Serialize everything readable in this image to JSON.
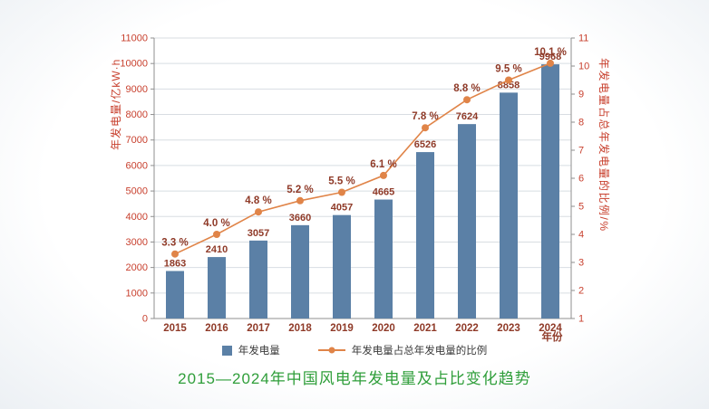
{
  "chart_data": {
    "type": "bar+line",
    "title": "2015—2024年中国风电年发电量及占比变化趋势",
    "categories": [
      "2015",
      "2016",
      "2017",
      "2018",
      "2019",
      "2020",
      "2021",
      "2022",
      "2023",
      "2024"
    ],
    "series": [
      {
        "name": "年发电量",
        "type": "bar",
        "values": [
          1863,
          2410,
          3057,
          3660,
          4057,
          4665,
          6526,
          7624,
          8858,
          9968
        ]
      },
      {
        "name": "年发电量占总年发电量的比例",
        "type": "line",
        "values": [
          3.3,
          4.0,
          4.8,
          5.2,
          5.5,
          6.1,
          7.8,
          8.8,
          9.5,
          10.1
        ],
        "labels": [
          "3.3 %",
          "4.0 %",
          "4.8 %",
          "5.2 %",
          "5.5 %",
          "6.1 %",
          "7.8 %",
          "8.8 %",
          "9.5 %",
          "10.1 %"
        ]
      }
    ],
    "left_axis": {
      "title": "年发电量/亿kW·h",
      "min": 0,
      "max": 11000,
      "step": 1000,
      "ticks": [
        "0",
        "1000",
        "2000",
        "3000",
        "4000",
        "5000",
        "6000",
        "7000",
        "8000",
        "9000",
        "10000",
        "11000"
      ]
    },
    "right_axis": {
      "title": "年发电量占总年发电量的比例/%",
      "min": 1,
      "max": 11,
      "step": 1,
      "ticks": [
        "1",
        "2",
        "3",
        "4",
        "5",
        "6",
        "7",
        "8",
        "9",
        "10",
        "11"
      ]
    },
    "xlabel": "年份",
    "grid": true,
    "legend_position": "bottom"
  },
  "colors": {
    "bar": "#5b80a6",
    "line": "#e08448",
    "tick_label": "#c8402e",
    "data_label": "#8f3a28",
    "axis": "#8f8f8f",
    "grid": "#d8dde2",
    "title": "#2f9e3a",
    "legend_text": "#3a3a3a",
    "background": "#ffffff"
  }
}
